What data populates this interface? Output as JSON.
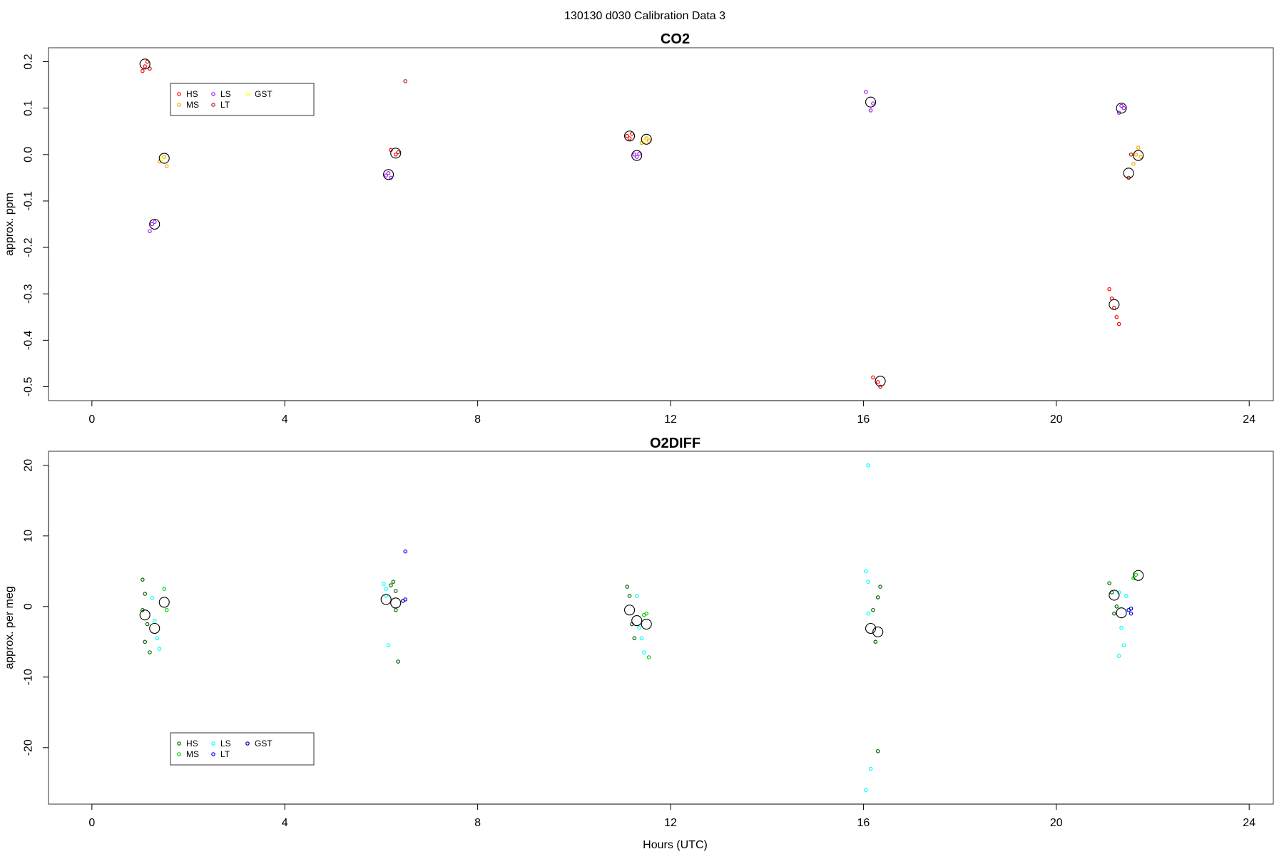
{
  "figure": {
    "suptitle": "130130   d030   Calibration Data 3"
  },
  "chart_data": [
    {
      "type": "scatter",
      "title": "CO2",
      "xlabel": "",
      "ylabel": "approx. ppm",
      "xlim": [
        -0.9,
        24.5
      ],
      "ylim": [
        -0.53,
        0.23
      ],
      "xticks": [
        0,
        4,
        8,
        12,
        16,
        20,
        24
      ],
      "yticks": [
        0.2,
        0.1,
        0.0,
        -0.1,
        -0.2,
        -0.3,
        -0.4,
        -0.5
      ],
      "ytick_labels": [
        "0.2",
        "0.1",
        "0.0",
        "-0.1",
        "-0.2",
        "-0.3",
        "-0.4",
        "-0.5"
      ],
      "grid": false,
      "legend_position": "top-left",
      "legend": [
        {
          "label": "HS",
          "color": "#ff0000"
        },
        {
          "label": "MS",
          "color": "#ffa500"
        },
        {
          "label": "LS",
          "color": "#a020f0"
        },
        {
          "label": "LT",
          "color": "#b22222"
        },
        {
          "label": "GST",
          "color": "#ffff00"
        }
      ],
      "series": [
        {
          "name": "HS",
          "color": "#ff0000",
          "points": [
            [
              1.05,
              0.18
            ],
            [
              1.1,
              0.19
            ],
            [
              1.15,
              0.2
            ],
            [
              1.2,
              0.185
            ],
            [
              6.2,
              0.01
            ],
            [
              6.3,
              0.0
            ],
            [
              11.1,
              0.04
            ],
            [
              11.15,
              0.035
            ],
            [
              11.2,
              0.045
            ],
            [
              16.2,
              -0.48
            ],
            [
              16.3,
              -0.49
            ],
            [
              16.35,
              -0.5
            ],
            [
              21.1,
              -0.29
            ],
            [
              21.15,
              -0.31
            ],
            [
              21.2,
              -0.33
            ],
            [
              21.25,
              -0.35
            ],
            [
              21.3,
              -0.365
            ]
          ]
        },
        {
          "name": "MS",
          "color": "#ffa500",
          "points": [
            [
              1.4,
              -0.015
            ],
            [
              1.5,
              -0.005
            ],
            [
              1.55,
              -0.025
            ],
            [
              11.4,
              0.025
            ],
            [
              11.5,
              0.035
            ],
            [
              11.55,
              0.03
            ],
            [
              21.6,
              -0.02
            ],
            [
              21.65,
              0.0
            ],
            [
              21.7,
              0.015
            ],
            [
              21.75,
              -0.005
            ]
          ]
        },
        {
          "name": "LS",
          "color": "#a020f0",
          "points": [
            [
              1.2,
              -0.165
            ],
            [
              1.25,
              -0.15
            ],
            [
              1.3,
              -0.145
            ],
            [
              6.1,
              -0.045
            ],
            [
              6.15,
              -0.04
            ],
            [
              6.2,
              -0.05
            ],
            [
              11.25,
              0.0
            ],
            [
              11.3,
              -0.005
            ],
            [
              11.35,
              0.002
            ],
            [
              16.05,
              0.135
            ],
            [
              16.15,
              0.095
            ],
            [
              16.2,
              0.11
            ],
            [
              21.3,
              0.09
            ],
            [
              21.35,
              0.105
            ],
            [
              21.4,
              0.1
            ]
          ]
        },
        {
          "name": "LT",
          "color": "#b22222",
          "points": [
            [
              6.5,
              0.158
            ],
            [
              6.35,
              0.005
            ],
            [
              21.5,
              -0.05
            ],
            [
              21.55,
              0.0
            ]
          ]
        },
        {
          "name": "GST",
          "color": "#ffff00",
          "points": [
            [
              1.45,
              -0.01
            ],
            [
              11.45,
              0.03
            ]
          ]
        },
        {
          "name": "",
          "color": "#000000",
          "kind": "mean",
          "points": [
            [
              1.1,
              0.195
            ],
            [
              1.3,
              -0.15
            ],
            [
              1.5,
              -0.008
            ],
            [
              6.15,
              -0.043
            ],
            [
              6.3,
              0.003
            ],
            [
              11.15,
              0.04
            ],
            [
              11.3,
              -0.002
            ],
            [
              11.5,
              0.033
            ],
            [
              16.15,
              0.113
            ],
            [
              16.35,
              -0.488
            ],
            [
              21.2,
              -0.323
            ],
            [
              21.35,
              0.1
            ],
            [
              21.5,
              -0.04
            ],
            [
              21.7,
              -0.002
            ]
          ]
        }
      ]
    },
    {
      "type": "scatter",
      "title": "O2DIFF",
      "xlabel": "Hours (UTC)",
      "ylabel": "approx. per meg",
      "xlim": [
        -0.9,
        24.5
      ],
      "ylim": [
        -28,
        22
      ],
      "xticks": [
        0,
        4,
        8,
        12,
        16,
        20,
        24
      ],
      "yticks": [
        20,
        10,
        0,
        -10,
        -20
      ],
      "ytick_labels": [
        "20",
        "10",
        "0",
        "-10",
        "-20"
      ],
      "grid": false,
      "legend_position": "bottom-left",
      "legend": [
        {
          "label": "HS",
          "color": "#006400"
        },
        {
          "label": "MS",
          "color": "#00cd00"
        },
        {
          "label": "LS",
          "color": "#00ffff"
        },
        {
          "label": "LT",
          "color": "#0000ff"
        },
        {
          "label": "GST",
          "color": "#00008b"
        }
      ],
      "series": [
        {
          "name": "HS",
          "color": "#006400",
          "points": [
            [
              1.05,
              3.8
            ],
            [
              1.1,
              1.8
            ],
            [
              1.15,
              -2.5
            ],
            [
              1.1,
              -5.0
            ],
            [
              1.2,
              -6.5
            ],
            [
              1.05,
              -0.5
            ],
            [
              6.2,
              3.0
            ],
            [
              6.25,
              3.5
            ],
            [
              6.3,
              2.2
            ],
            [
              6.35,
              -7.8
            ],
            [
              6.3,
              -0.5
            ],
            [
              11.1,
              2.8
            ],
            [
              11.15,
              1.5
            ],
            [
              11.2,
              -2.5
            ],
            [
              11.25,
              -4.5
            ],
            [
              16.2,
              -0.5
            ],
            [
              16.25,
              -5.0
            ],
            [
              16.3,
              1.3
            ],
            [
              16.35,
              2.8
            ],
            [
              16.3,
              -20.5
            ],
            [
              21.1,
              3.3
            ],
            [
              21.15,
              2.0
            ],
            [
              21.2,
              -1.0
            ],
            [
              21.25,
              0.0
            ]
          ]
        },
        {
          "name": "MS",
          "color": "#00cd00",
          "points": [
            [
              1.5,
              2.5
            ],
            [
              1.55,
              -0.5
            ],
            [
              11.5,
              -1.0
            ],
            [
              11.55,
              -7.2
            ],
            [
              11.45,
              -1.2
            ],
            [
              21.6,
              4.0
            ],
            [
              21.65,
              4.5
            ]
          ]
        },
        {
          "name": "LS",
          "color": "#00ffff",
          "points": [
            [
              1.25,
              1.2
            ],
            [
              1.3,
              -2.0
            ],
            [
              1.35,
              -4.5
            ],
            [
              1.4,
              -6.0
            ],
            [
              6.05,
              3.2
            ],
            [
              6.1,
              2.5
            ],
            [
              6.15,
              -5.5
            ],
            [
              6.1,
              1.5
            ],
            [
              11.3,
              1.5
            ],
            [
              11.35,
              -3.0
            ],
            [
              11.4,
              -4.5
            ],
            [
              11.45,
              -6.5
            ],
            [
              16.05,
              5.0
            ],
            [
              16.1,
              3.5
            ],
            [
              16.1,
              20.0
            ],
            [
              16.15,
              -23.0
            ],
            [
              16.05,
              -26.0
            ],
            [
              16.1,
              -1.0
            ],
            [
              21.3,
              2.0
            ],
            [
              21.35,
              -3.0
            ],
            [
              21.4,
              -5.5
            ],
            [
              21.3,
              -7.0
            ],
            [
              21.45,
              1.5
            ]
          ]
        },
        {
          "name": "LT",
          "color": "#0000ff",
          "points": [
            [
              6.5,
              7.8
            ],
            [
              6.5,
              1.0
            ],
            [
              21.5,
              -0.5
            ],
            [
              21.55,
              -1.0
            ]
          ]
        },
        {
          "name": "GST",
          "color": "#00008b",
          "points": [
            [
              6.45,
              0.8
            ],
            [
              21.55,
              -0.3
            ]
          ]
        },
        {
          "name": "",
          "color": "#000000",
          "kind": "mean",
          "points": [
            [
              1.1,
              -1.2
            ],
            [
              1.3,
              -3.1
            ],
            [
              1.5,
              0.6
            ],
            [
              6.1,
              1.0
            ],
            [
              6.3,
              0.5
            ],
            [
              11.15,
              -0.5
            ],
            [
              11.3,
              -2.0
            ],
            [
              11.5,
              -2.5
            ],
            [
              16.15,
              -3.1
            ],
            [
              16.3,
              -3.6
            ],
            [
              21.2,
              1.6
            ],
            [
              21.35,
              -0.9
            ],
            [
              21.7,
              4.4
            ]
          ]
        }
      ]
    }
  ]
}
